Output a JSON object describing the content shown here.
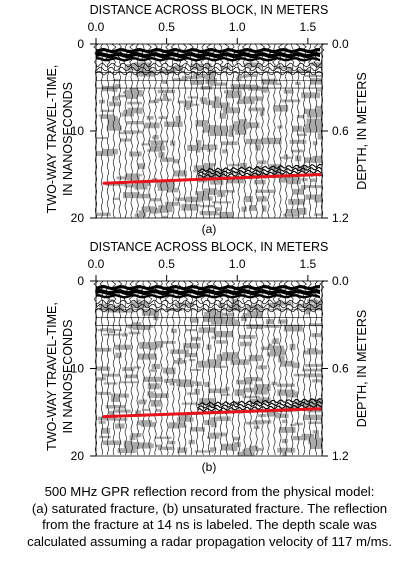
{
  "chart_data": [
    {
      "type": "radargram",
      "panel_label": "(a)",
      "xlabel": "DISTANCE ACROSS BLOCK, IN METERS",
      "ylabel_lines": [
        "TWO-WAY TRAVEL-TIME,",
        "IN NANOSECONDS"
      ],
      "y2label": "DEPTH, IN METERS",
      "x_ticks": [
        "0.0",
        "0.5",
        "1.0",
        "1.5"
      ],
      "x_tick_values": [
        0.0,
        0.5,
        1.0,
        1.5
      ],
      "xlim": [
        0.0,
        1.6
      ],
      "y_ticks": [
        "0",
        "10",
        "20"
      ],
      "y_tick_values": [
        0,
        10,
        20
      ],
      "ylim": [
        0,
        20
      ],
      "y2_ticks": [
        "0.0",
        "0.6",
        "1.2"
      ],
      "y2_tick_values": [
        0.0,
        0.6,
        1.2
      ],
      "fracture_line": {
        "x": [
          0.0,
          1.6
        ],
        "y": [
          16.0,
          15.0
        ],
        "color": "#e8121b"
      }
    },
    {
      "type": "radargram",
      "panel_label": "(b)",
      "xlabel": "DISTANCE ACROSS BLOCK, IN METERS",
      "ylabel_lines": [
        "TWO-WAY TRAVEL-TIME,",
        "IN NANOSECONDS"
      ],
      "y2label": "DEPTH, IN METERS",
      "x_ticks": [
        "0.0",
        "0.5",
        "1.0",
        "1.5"
      ],
      "x_tick_values": [
        0.0,
        0.5,
        1.0,
        1.5
      ],
      "xlim": [
        0.0,
        1.6
      ],
      "y_ticks": [
        "0",
        "10",
        "20"
      ],
      "y_tick_values": [
        0,
        10,
        20
      ],
      "ylim": [
        0,
        20
      ],
      "y2_ticks": [
        "0.0",
        "0.6",
        "1.2"
      ],
      "y2_tick_values": [
        0.0,
        0.6,
        1.2
      ],
      "fracture_line": {
        "x": [
          0.0,
          1.6
        ],
        "y": [
          15.5,
          14.6
        ],
        "color": "#e8121b"
      }
    }
  ],
  "caption_lines": [
    "500 MHz GPR reflection record from the physical model:",
    "(a) saturated fracture, (b) unsaturated fracture.  The reflection",
    "from the fracture at 14 ns is labeled.  The depth scale was",
    "calculated assuming a radar propagation velocity of 117 m/ms."
  ]
}
